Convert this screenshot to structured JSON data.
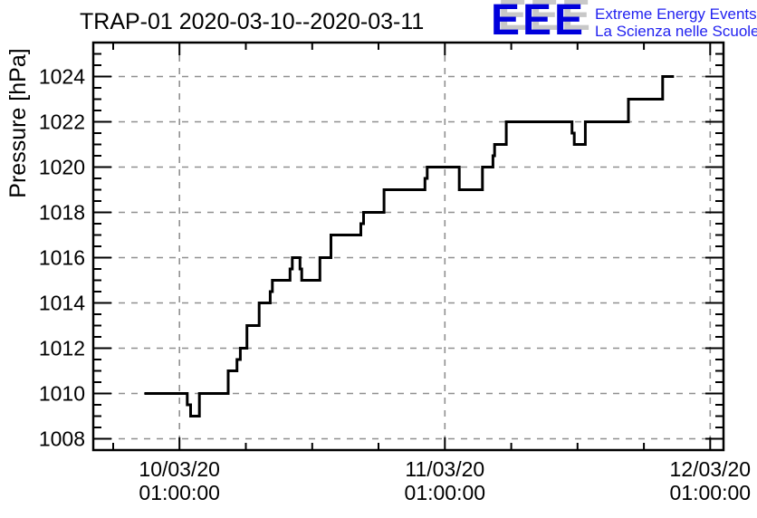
{
  "header": {
    "title": "TRAP-01 2020-03-10--2020-03-11",
    "logo": {
      "acronym": "EEE",
      "tagline_line1": "Extreme Energy Events",
      "tagline_line2": "La Scienza nelle Scuole"
    }
  },
  "colors": {
    "background": "#FFFFFF",
    "line": "#000000",
    "frame": "#000000",
    "grid": "#909090",
    "logo_blue": "#0000DC",
    "logo_shadow": "#C8C8C8",
    "tagline_blue": "#2222F0"
  },
  "chart_data": {
    "type": "line",
    "subtype": "step",
    "title": "TRAP-01 2020-03-10--2020-03-11",
    "xlabel": "",
    "ylabel": "Pressure [hPa]",
    "x_unit": "hours since 2020-03-10 00:00:00",
    "xlim": [
      -6.8,
      50.2
    ],
    "ylim": [
      1007.5,
      1025.5
    ],
    "grid": "dashed-on-major-ticks",
    "legend": "none",
    "x_major_ticks": [
      {
        "t": 1,
        "label_line1": "10/03/20",
        "label_line2": "01:00:00"
      },
      {
        "t": 25,
        "label_line1": "11/03/20",
        "label_line2": "01:00:00"
      },
      {
        "t": 49,
        "label_line1": "12/03/20",
        "label_line2": "01:00:00"
      }
    ],
    "x_minor_ticks": [
      -5,
      7,
      13,
      19,
      31,
      37,
      43
    ],
    "y_major_ticks": [
      1008,
      1010,
      1012,
      1014,
      1016,
      1018,
      1020,
      1022,
      1024
    ],
    "y_minor_step": 0.5,
    "series": [
      {
        "name": "TRAP-01 pressure",
        "color": "#000000",
        "line_width": 3,
        "steps": [
          [
            -2.05,
            1010
          ],
          [
            1.7,
            1009.5
          ],
          [
            2.0,
            1009
          ],
          [
            2.8,
            1010
          ],
          [
            5.4,
            1011
          ],
          [
            6.2,
            1011.5
          ],
          [
            6.5,
            1012
          ],
          [
            7.1,
            1013
          ],
          [
            8.2,
            1014
          ],
          [
            9.2,
            1014.5
          ],
          [
            9.4,
            1015
          ],
          [
            11.0,
            1015.5
          ],
          [
            11.2,
            1016
          ],
          [
            11.9,
            1015.5
          ],
          [
            12.05,
            1015
          ],
          [
            13.7,
            1016
          ],
          [
            14.7,
            1017
          ],
          [
            17.4,
            1017.5
          ],
          [
            17.65,
            1018
          ],
          [
            19.5,
            1019
          ],
          [
            23.2,
            1019.5
          ],
          [
            23.4,
            1020
          ],
          [
            26.3,
            1019
          ],
          [
            28.4,
            1020
          ],
          [
            29.35,
            1020.5
          ],
          [
            29.5,
            1021
          ],
          [
            30.55,
            1022
          ],
          [
            36.5,
            1021.5
          ],
          [
            36.7,
            1021
          ],
          [
            37.7,
            1022
          ],
          [
            41.6,
            1023
          ],
          [
            44.7,
            1024
          ]
        ],
        "t_end": 45.6
      }
    ]
  }
}
